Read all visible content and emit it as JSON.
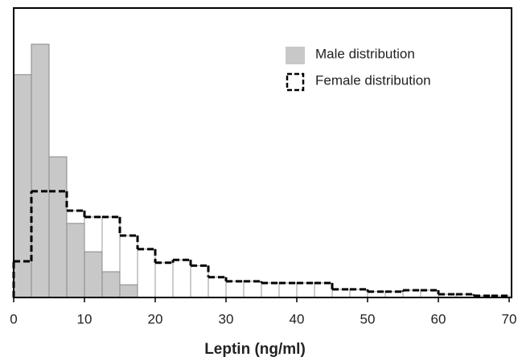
{
  "chart_data": {
    "type": "histogram",
    "xlabel": "Leptin (ng/ml)",
    "bins": [
      0,
      2.5,
      5,
      7.5,
      10,
      12.5,
      15,
      17.5,
      20,
      22.5,
      25,
      27.5,
      30,
      32.5,
      35,
      37.5,
      40,
      42.5,
      45,
      47.5,
      50,
      52.5,
      55,
      57.5,
      60,
      62.5,
      65,
      67.5,
      70
    ],
    "series": [
      {
        "name": "Male distribution",
        "color": "#c8c8c8",
        "values": [
          77,
          87.5,
          48.6,
          25.6,
          15.8,
          8.9,
          4.4,
          0,
          0,
          0,
          0,
          0,
          0,
          0,
          0,
          0,
          0,
          0,
          0,
          0,
          0,
          0,
          0,
          0,
          0,
          0,
          0,
          0
        ]
      },
      {
        "name": "Female distribution",
        "color": "#000000",
        "values": [
          12.5,
          36.7,
          36.7,
          30,
          27.8,
          27.8,
          21.4,
          16.7,
          12,
          13,
          11,
          7,
          5.6,
          5.6,
          5,
          5,
          5,
          5,
          2.8,
          2.8,
          2,
          2,
          2.5,
          2.5,
          1.1,
          1.1,
          0.6,
          0.6
        ]
      }
    ],
    "xlim": [
      0,
      70
    ],
    "ylim": [
      0,
      100
    ],
    "xticks": [
      0,
      10,
      20,
      30,
      40,
      50,
      60,
      70
    ],
    "legend": "upper right"
  }
}
